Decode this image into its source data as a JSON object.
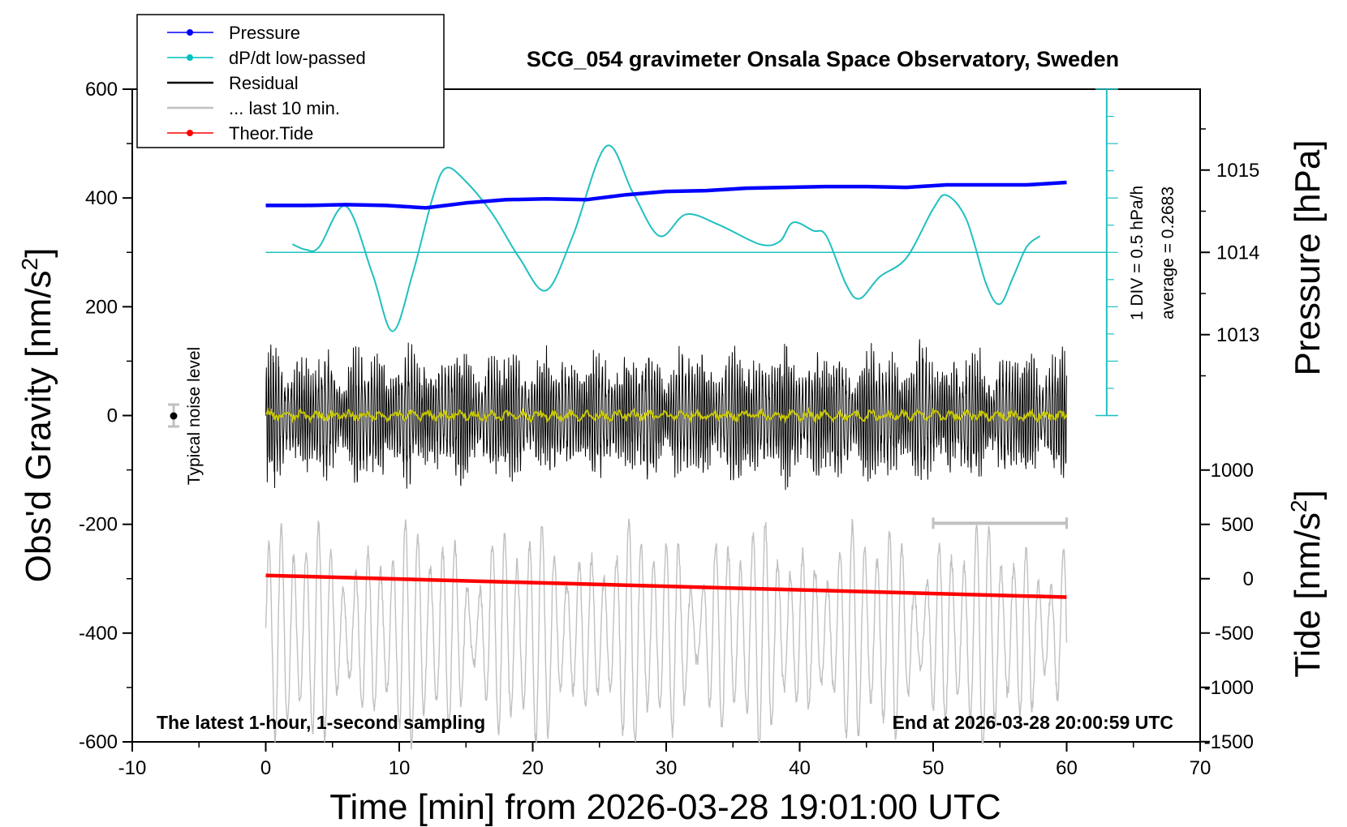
{
  "chart_data": {
    "type": "line",
    "title": "SCG_054 gravimeter Onsala Space Observatory, Sweden",
    "subtitle_left": "The latest 1-hour, 1-second sampling",
    "subtitle_right": "End at 2026-03-28 20:00:59 UTC",
    "xlabel": "Time [min] from 2026-03-28 19:01:00 UTC",
    "ylabel_left_main": "Obs'd Gravity [nm/s",
    "ylabel_left_sup": "2",
    "ylabel_left_end": "]",
    "ylabel_right_top": "Pressure [hPa]",
    "ylabel_right_bottom_main": "Tide [nm/s",
    "ylabel_right_bottom_sup": "2",
    "ylabel_right_bottom_end": "]",
    "xlim": [
      -10,
      70
    ],
    "ylim_left": [
      -600,
      600
    ],
    "x_ticks": [
      "-10",
      "0",
      "10",
      "20",
      "30",
      "40",
      "50",
      "60",
      "70"
    ],
    "y_ticks_left": [
      "600",
      "400",
      "200",
      "0",
      "-200",
      "-400",
      "-600"
    ],
    "y_ticks_pressure": [
      "1015",
      "1014",
      "1013"
    ],
    "y_ticks_tide": [
      "1000",
      "500",
      "0",
      "-500",
      "-1000",
      "-1500"
    ],
    "pressure_scale_label": "1 DIV = 0.5 hPa/h",
    "pressure_average_label": "average = 0.2683",
    "noise_label": "Typical noise level",
    "legend": [
      {
        "label": "Pressure",
        "color": "#0000ff",
        "marker": true
      },
      {
        "label": "dP/dt low-passed",
        "color": "#00c0c0",
        "marker": true
      },
      {
        "label": "Residual",
        "color": "#000000",
        "marker": false
      },
      {
        "label": "... last 10 min.",
        "color": "#c0c0c0",
        "marker": false
      },
      {
        "label": "Theor.Tide",
        "color": "#ff0000",
        "marker": true
      }
    ],
    "colors": {
      "pressure": "#0000ff",
      "dpdt": "#20c0c0",
      "residual": "#000000",
      "last10": "#c0c0c0",
      "tide": "#ff0000",
      "lowpass": "#c8c800"
    },
    "series": [
      {
        "name": "Pressure",
        "unit": "hPa",
        "x": [
          0,
          3,
          6,
          9,
          12,
          15,
          18,
          21,
          24,
          27,
          30,
          33,
          36,
          39,
          42,
          45,
          48,
          51,
          54,
          57,
          60
        ],
        "values": [
          1014.57,
          1014.57,
          1014.58,
          1014.57,
          1014.54,
          1014.6,
          1014.64,
          1014.65,
          1014.64,
          1014.7,
          1014.74,
          1014.75,
          1014.78,
          1014.79,
          1014.8,
          1014.8,
          1014.79,
          1014.82,
          1014.82,
          1014.82,
          1014.85
        ]
      },
      {
        "name": "dP/dt low-passed",
        "unit": "nm/s2 axis",
        "x": [
          2,
          3,
          4,
          6,
          8,
          9.5,
          11,
          12.5,
          13.5,
          15,
          17,
          19,
          21,
          23,
          25.5,
          27.5,
          29.5,
          31.5,
          34,
          37,
          38.5,
          39.5,
          41,
          42,
          43.5,
          44.5,
          46,
          48,
          50,
          51,
          52.5,
          54,
          55,
          56,
          57,
          58
        ],
        "values": [
          315,
          305,
          310,
          385,
          260,
          155,
          260,
          400,
          455,
          430,
          370,
          290,
          230,
          330,
          495,
          410,
          330,
          370,
          350,
          315,
          320,
          355,
          340,
          330,
          240,
          215,
          255,
          290,
          380,
          405,
          360,
          240,
          205,
          255,
          310,
          330
        ]
      },
      {
        "name": "Theor.Tide",
        "unit": "nm/s2",
        "x": [
          0,
          60
        ],
        "values": [
          30,
          -170
        ]
      }
    ]
  }
}
